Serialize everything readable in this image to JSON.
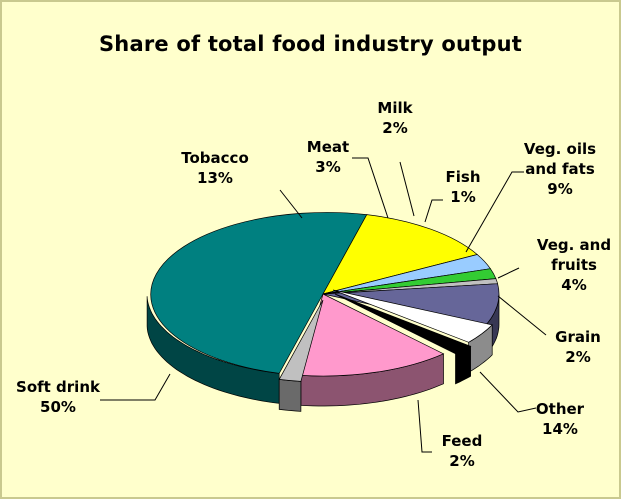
{
  "chart_data": {
    "type": "pie",
    "title": "Share of total food industry output",
    "slices": [
      {
        "name": "Soft drink",
        "label": [
          "Soft drink",
          "50%"
        ],
        "value": 50,
        "color": "#008080",
        "side": "#004545"
      },
      {
        "name": "Tobacco",
        "label": [
          "Tobacco",
          "13%"
        ],
        "value": 13,
        "color": "#ffff00",
        "side": "#8a8a00"
      },
      {
        "name": "Meat",
        "label": [
          "Meat",
          "3%"
        ],
        "value": 3,
        "color": "#99ccff",
        "side": "#52708c"
      },
      {
        "name": "Milk",
        "label": [
          "Milk",
          "2%"
        ],
        "value": 2,
        "color": "#33cc33",
        "side": "#1c701c"
      },
      {
        "name": "Fish",
        "label": [
          "Fish",
          "1%"
        ],
        "value": 1,
        "color": "#c0c0c0",
        "side": "#6a6a6a"
      },
      {
        "name": "Veg. oils and fats",
        "label": [
          "Veg. oils",
          "and fats",
          "9%"
        ],
        "value": 9,
        "color": "#666699",
        "side": "#383854"
      },
      {
        "name": "Veg. and fruits",
        "label": [
          "Veg. and",
          "fruits",
          "4%"
        ],
        "value": 4,
        "color": "#ffffff",
        "side": "#8c8c8c"
      },
      {
        "name": "Grain",
        "label": [
          "Grain",
          "2%"
        ],
        "value": 2,
        "color": "#000000",
        "side": "#000000"
      },
      {
        "name": "Other",
        "label": [
          "Other",
          "14%"
        ],
        "value": 14,
        "color": "#ff99cc",
        "side": "#8c5470"
      },
      {
        "name": "Feed",
        "label": [
          "Feed",
          "2%"
        ],
        "value": 2,
        "color": "#c0c0c0",
        "side": "#6a6a6a"
      }
    ]
  }
}
